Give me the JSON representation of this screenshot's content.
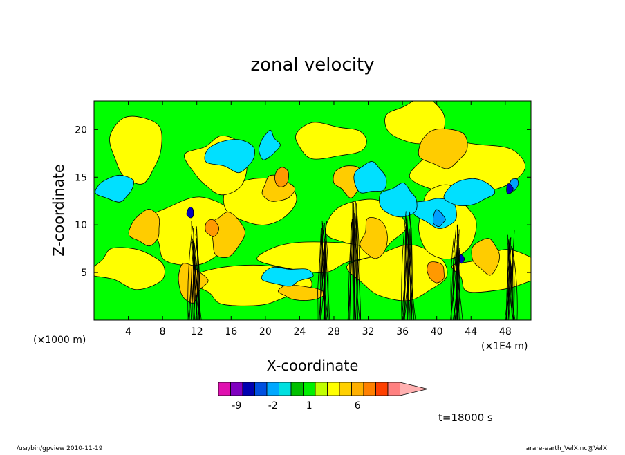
{
  "chart_data": {
    "type": "heatmap",
    "title": "zonal velocity",
    "xlabel": "X-coordinate",
    "ylabel": "Z-coordinate",
    "x_ticks": [
      "4",
      "8",
      "12",
      "16",
      "20",
      "24",
      "28",
      "32",
      "36",
      "40",
      "44",
      "48"
    ],
    "x_tick_values": [
      4,
      8,
      12,
      16,
      20,
      24,
      28,
      32,
      36,
      40,
      44,
      48
    ],
    "y_ticks": [
      "5",
      "10",
      "15",
      "20"
    ],
    "y_tick_values": [
      5,
      10,
      15,
      20
    ],
    "xlim": [
      0,
      51
    ],
    "ylim": [
      0,
      23
    ],
    "x_unit": "(×1E4 m)",
    "y_unit": "(×1000 m)",
    "colorbar": {
      "colors": [
        "#e010b0",
        "#8000c0",
        "#0000b0",
        "#0050e0",
        "#00a8ff",
        "#00e0e0",
        "#00c000",
        "#00f000",
        "#c0ff00",
        "#ffff00",
        "#ffd000",
        "#ffb000",
        "#ff8000",
        "#ff4000",
        "#ff8080",
        "#ffb0b0"
      ],
      "labels": [
        "-9",
        "-2",
        "1",
        "6"
      ],
      "label_bin_index": [
        1,
        4,
        7,
        11
      ]
    },
    "annotation": "t=18000 s",
    "field_colors": {
      "background": "#00ff00",
      "positive_weak": "#ffff00",
      "positive_mid": "#ffcc00",
      "positive_strong": "#ff9900",
      "negative_weak": "#00e0ff",
      "negative_mid": "#00a0ff",
      "negative_strong": "#0000c0",
      "contour": "#000000"
    }
  },
  "footer": {
    "left": "/usr/bin/gpview  2010-11-19",
    "right": "arare-earth_VelX.nc@VelX"
  }
}
